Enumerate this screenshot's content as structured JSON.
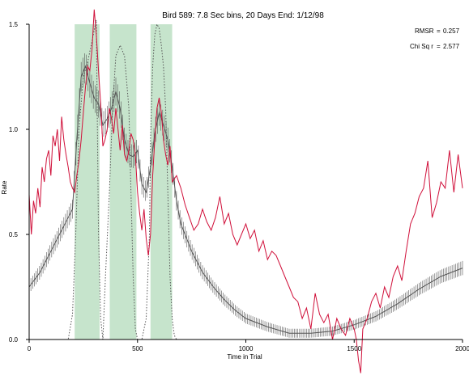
{
  "chart_data": {
    "type": "line",
    "title": "Bird 589: 7.8 Sec bins, 20 Days End: 1/12/98",
    "xlabel": "Time in Trial",
    "ylabel": "Rate",
    "xlim": [
      0,
      2000
    ],
    "ylim": [
      0,
      1.5
    ],
    "xticks": [
      "0",
      "500",
      "1000",
      "1500",
      "2000"
    ],
    "yticks": [
      "0.0",
      "0.5",
      "1.0",
      "1.5"
    ],
    "stats": [
      {
        "label": "RMSR",
        "eq": "=",
        "value": "0.257"
      },
      {
        "label": "Chi Sq r",
        "eq": "=",
        "value": "2.577"
      }
    ],
    "shaded_intervals": [
      [
        210,
        325
      ],
      [
        372,
        495
      ],
      [
        560,
        660
      ]
    ],
    "colors": {
      "shade": "#c6e4cc",
      "observed": "#d0103a",
      "model": "#555555",
      "dotted": "#555555"
    },
    "observed": {
      "x": [
        0,
        10,
        20,
        30,
        40,
        50,
        60,
        70,
        80,
        90,
        100,
        110,
        120,
        130,
        140,
        150,
        160,
        170,
        180,
        190,
        200,
        210,
        220,
        230,
        240,
        250,
        260,
        270,
        280,
        290,
        300,
        310,
        320,
        330,
        340,
        350,
        360,
        370,
        380,
        390,
        400,
        410,
        420,
        430,
        440,
        450,
        460,
        470,
        480,
        490,
        500,
        510,
        520,
        530,
        540,
        550,
        560,
        570,
        580,
        590,
        600,
        610,
        620,
        630,
        640,
        650,
        660,
        680,
        700,
        720,
        740,
        760,
        780,
        800,
        820,
        840,
        860,
        880,
        900,
        920,
        940,
        960,
        980,
        1000,
        1020,
        1040,
        1060,
        1080,
        1100,
        1120,
        1140,
        1160,
        1180,
        1200,
        1220,
        1240,
        1260,
        1280,
        1300,
        1320,
        1340,
        1360,
        1380,
        1400,
        1420,
        1440,
        1460,
        1480,
        1500,
        1510,
        1520,
        1530,
        1540,
        1560,
        1580,
        1600,
        1620,
        1640,
        1660,
        1680,
        1700,
        1720,
        1740,
        1760,
        1780,
        1800,
        1820,
        1840,
        1860,
        1880,
        1900,
        1920,
        1940,
        1960,
        1980,
        2000
      ],
      "y": [
        0.69,
        0.5,
        0.66,
        0.6,
        0.72,
        0.63,
        0.82,
        0.75,
        0.86,
        0.9,
        0.78,
        0.97,
        0.92,
        1.0,
        0.85,
        1.06,
        0.95,
        0.88,
        0.82,
        0.75,
        0.72,
        0.7,
        0.78,
        0.85,
        0.95,
        1.08,
        1.2,
        1.3,
        1.28,
        1.38,
        1.57,
        1.45,
        1.28,
        1.12,
        0.92,
        0.95,
        1.0,
        1.1,
        1.05,
        0.98,
        1.1,
        1.0,
        0.9,
        1.02,
        0.88,
        0.85,
        0.9,
        0.98,
        0.95,
        0.88,
        0.7,
        0.6,
        0.52,
        0.62,
        0.48,
        0.4,
        0.5,
        0.78,
        0.95,
        1.1,
        1.15,
        1.08,
        0.95,
        0.88,
        0.83,
        0.92,
        0.75,
        0.78,
        0.72,
        0.64,
        0.58,
        0.52,
        0.55,
        0.62,
        0.56,
        0.52,
        0.58,
        0.68,
        0.55,
        0.6,
        0.5,
        0.45,
        0.5,
        0.55,
        0.48,
        0.52,
        0.42,
        0.47,
        0.38,
        0.42,
        0.4,
        0.35,
        0.3,
        0.25,
        0.2,
        0.18,
        0.1,
        0.15,
        0.05,
        0.22,
        0.12,
        0.08,
        0.12,
        0.0,
        0.1,
        0.05,
        0.02,
        0.1,
        0.05,
        0.0,
        -0.1,
        -0.16,
        0.05,
        0.1,
        0.18,
        0.22,
        0.15,
        0.25,
        0.2,
        0.3,
        0.35,
        0.28,
        0.42,
        0.55,
        0.6,
        0.68,
        0.72,
        0.85,
        0.58,
        0.65,
        0.75,
        0.72,
        0.9,
        0.7,
        0.88,
        0.72
      ]
    },
    "model": {
      "x": [
        0,
        50,
        100,
        150,
        200,
        220,
        240,
        260,
        280,
        300,
        320,
        340,
        360,
        380,
        400,
        420,
        440,
        460,
        480,
        500,
        520,
        540,
        560,
        580,
        600,
        620,
        640,
        660,
        680,
        700,
        750,
        800,
        850,
        900,
        950,
        1000,
        1100,
        1200,
        1300,
        1400,
        1500,
        1600,
        1700,
        1800,
        1900,
        2000
      ],
      "y": [
        0.25,
        0.32,
        0.42,
        0.52,
        0.62,
        0.95,
        1.25,
        1.3,
        1.22,
        1.15,
        1.12,
        1.02,
        1.05,
        1.1,
        1.18,
        1.1,
        0.95,
        0.88,
        0.87,
        0.9,
        0.74,
        0.7,
        0.82,
        0.98,
        1.08,
        1.02,
        0.95,
        0.82,
        0.66,
        0.55,
        0.42,
        0.32,
        0.25,
        0.19,
        0.14,
        0.1,
        0.06,
        0.03,
        0.03,
        0.04,
        0.07,
        0.11,
        0.17,
        0.24,
        0.3,
        0.34
      ]
    },
    "dotted": {
      "x": [
        0,
        180,
        200,
        215,
        230,
        250,
        270,
        290,
        310,
        320,
        330,
        340,
        352,
        370,
        385,
        400,
        420,
        440,
        460,
        470,
        480,
        490,
        500,
        520,
        540,
        555,
        560,
        570,
        580,
        590,
        600,
        610,
        620,
        630,
        640,
        650,
        660,
        670,
        680,
        2000
      ],
      "y": [
        0,
        0,
        0.12,
        0.5,
        1.0,
        1.25,
        1.32,
        1.42,
        1.52,
        0.5,
        0.1,
        0,
        0.3,
        0.7,
        1.1,
        1.35,
        1.4,
        1.35,
        1.1,
        0.7,
        0.3,
        0.05,
        0,
        0,
        0.1,
        0.5,
        0.95,
        1.3,
        1.45,
        1.5,
        1.48,
        1.4,
        1.3,
        1.1,
        0.7,
        0.3,
        0.1,
        0.02,
        0,
        0
      ]
    }
  }
}
